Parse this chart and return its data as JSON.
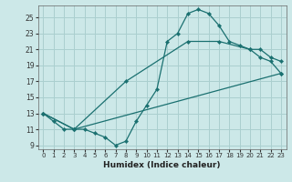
{
  "title": "",
  "xlabel": "Humidex (Indice chaleur)",
  "ylabel": "",
  "background_color": "#cce8e8",
  "grid_color": "#aacfcf",
  "line_color": "#1a7070",
  "xlim": [
    -0.5,
    23.5
  ],
  "ylim": [
    8.5,
    26.5
  ],
  "xticks": [
    0,
    1,
    2,
    3,
    4,
    5,
    6,
    7,
    8,
    9,
    10,
    11,
    12,
    13,
    14,
    15,
    16,
    17,
    18,
    19,
    20,
    21,
    22,
    23
  ],
  "yticks": [
    9,
    11,
    13,
    15,
    17,
    19,
    21,
    23,
    25
  ],
  "series": [
    {
      "x": [
        0,
        1,
        2,
        3,
        4,
        5,
        6,
        7,
        8,
        9,
        10,
        11,
        12,
        13,
        14,
        15,
        16,
        17,
        18,
        19,
        20,
        21,
        22,
        23
      ],
      "y": [
        13,
        12,
        11,
        11,
        11,
        10.5,
        10,
        9,
        9.5,
        12,
        14,
        16,
        22,
        23,
        25.5,
        26,
        25.5,
        24,
        22,
        21.5,
        21,
        20,
        19.5,
        18
      ]
    },
    {
      "x": [
        0,
        3,
        23
      ],
      "y": [
        13,
        11,
        18
      ]
    },
    {
      "x": [
        0,
        3,
        8,
        14,
        17,
        20,
        21,
        22,
        23
      ],
      "y": [
        13,
        11,
        17,
        22,
        22,
        21,
        21,
        20,
        19.5
      ]
    }
  ]
}
